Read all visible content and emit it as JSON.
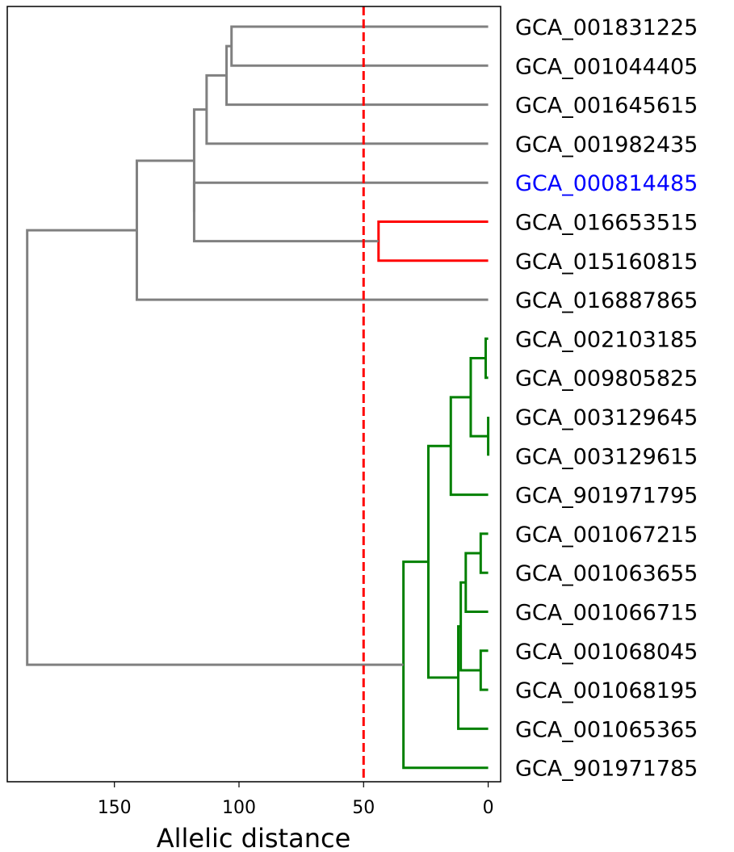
{
  "chart_data": {
    "type": "dendrogram",
    "orientation": "left",
    "xlabel": "Allelic distance",
    "xlim": [
      193,
      -5
    ],
    "xticks": [
      150,
      100,
      50,
      0
    ],
    "threshold": 50,
    "leaves": [
      {
        "label": "GCA_001831225",
        "color": "#000000"
      },
      {
        "label": "GCA_001044405",
        "color": "#000000"
      },
      {
        "label": "GCA_001645615",
        "color": "#000000"
      },
      {
        "label": "GCA_001982435",
        "color": "#000000"
      },
      {
        "label": "GCA_000814485",
        "color": "#0000ff"
      },
      {
        "label": "GCA_016653515",
        "color": "#000000"
      },
      {
        "label": "GCA_015160815",
        "color": "#000000"
      },
      {
        "label": "GCA_016887865",
        "color": "#000000"
      },
      {
        "label": "GCA_002103185",
        "color": "#000000"
      },
      {
        "label": "GCA_009805825",
        "color": "#000000"
      },
      {
        "label": "GCA_003129645",
        "color": "#000000"
      },
      {
        "label": "GCA_003129615",
        "color": "#000000"
      },
      {
        "label": "GCA_901971795",
        "color": "#000000"
      },
      {
        "label": "GCA_001067215",
        "color": "#000000"
      },
      {
        "label": "GCA_001063655",
        "color": "#000000"
      },
      {
        "label": "GCA_001066715",
        "color": "#000000"
      },
      {
        "label": "GCA_001068045",
        "color": "#000000"
      },
      {
        "label": "GCA_001068195",
        "color": "#000000"
      },
      {
        "label": "GCA_001065365",
        "color": "#000000"
      },
      {
        "label": "GCA_901971785",
        "color": "#000000"
      }
    ],
    "merges": [
      {
        "a": "L0",
        "b": "L1",
        "height": 103,
        "color": "#808080"
      },
      {
        "a": "M0",
        "b": "L2",
        "height": 105,
        "color": "#808080"
      },
      {
        "a": "M1",
        "b": "L3",
        "height": 113,
        "color": "#808080"
      },
      {
        "a": "L5",
        "b": "L6",
        "height": 44,
        "color": "#ff0000"
      },
      {
        "a": "L4",
        "b": "M3",
        "height": 118,
        "color": "#808080"
      },
      {
        "a": "M2",
        "b": "M4",
        "height": 118,
        "color": "#808080"
      },
      {
        "a": "M5",
        "b": "L7",
        "height": 141,
        "color": "#808080"
      },
      {
        "a": "L8",
        "b": "L9",
        "height": 1,
        "color": "#008000"
      },
      {
        "a": "L10",
        "b": "L11",
        "height": 0,
        "color": "#008000"
      },
      {
        "a": "M7",
        "b": "M8",
        "height": 7,
        "color": "#008000"
      },
      {
        "a": "M9",
        "b": "L12",
        "height": 15,
        "color": "#008000"
      },
      {
        "a": "L13",
        "b": "L14",
        "height": 3,
        "color": "#008000"
      },
      {
        "a": "M11",
        "b": "L15",
        "height": 9,
        "color": "#008000"
      },
      {
        "a": "L16",
        "b": "L17",
        "height": 3,
        "color": "#008000"
      },
      {
        "a": "M12",
        "b": "M13",
        "height": 11,
        "color": "#008000"
      },
      {
        "a": "M14",
        "b": "L18",
        "height": 12,
        "color": "#008000"
      },
      {
        "a": "M10",
        "b": "M15",
        "height": 24,
        "color": "#008000"
      },
      {
        "a": "M16",
        "b": "L19",
        "height": 34,
        "color": "#008000"
      },
      {
        "a": "M6",
        "b": "M17",
        "height": 185,
        "color": "#808080"
      }
    ],
    "colors": {
      "threshold_line": "#ff0000",
      "highlight_label": "#0000ff",
      "default_label": "#000000"
    }
  }
}
